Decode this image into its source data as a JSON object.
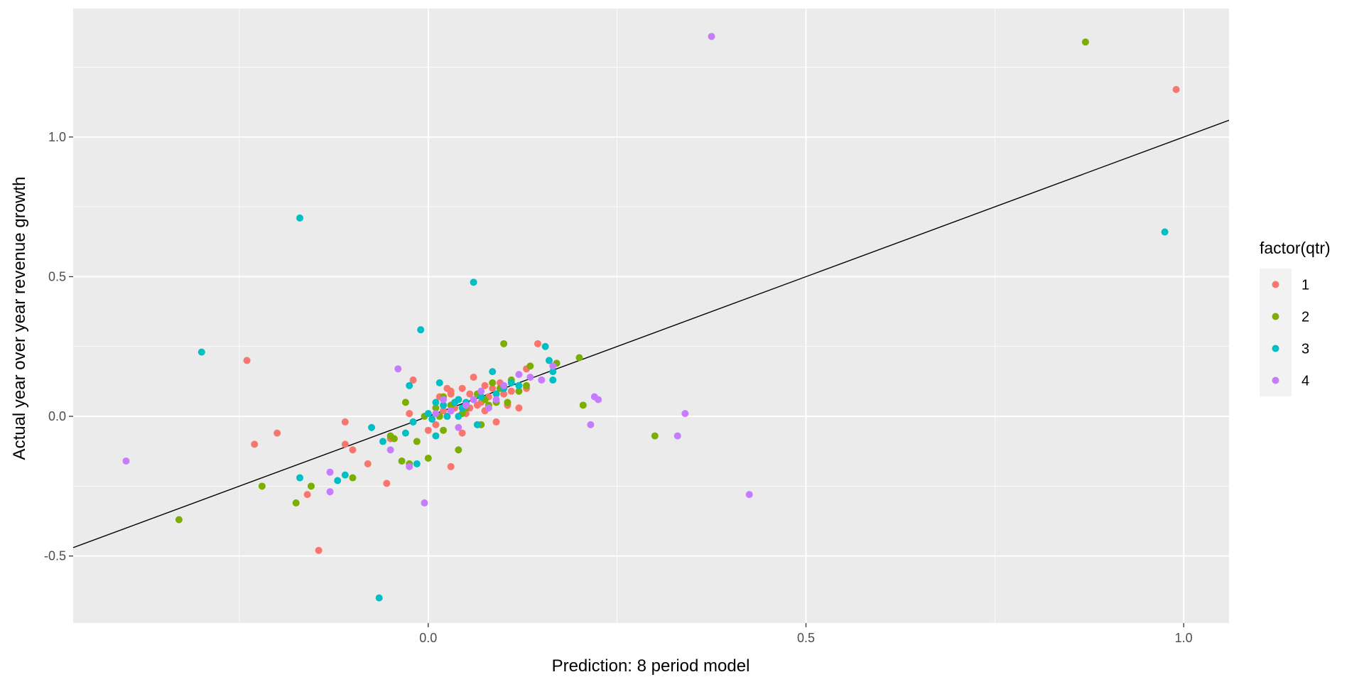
{
  "chart_data": {
    "type": "scatter",
    "title": "",
    "xlabel": "Prediction: 8 period model",
    "ylabel": "Actual year over year revenue growth",
    "xlim": [
      -0.47,
      1.06
    ],
    "ylim": [
      -0.74,
      1.46
    ],
    "x_ticks": [
      0.0,
      0.5,
      1.0
    ],
    "x_tick_labels": [
      "0.0",
      "0.5",
      "1.0"
    ],
    "y_ticks": [
      -0.5,
      0.0,
      0.5,
      1.0
    ],
    "y_tick_labels": [
      "-0.5",
      "0.0",
      "0.5",
      "1.0"
    ],
    "grid": true,
    "legend": {
      "title": "factor(qtr)",
      "position": "right"
    },
    "reference_line": {
      "slope": 1,
      "intercept": 0
    },
    "colors": {
      "panel": "#ebebeb",
      "grid": "#ffffff",
      "tick_text": "#4d4d4d",
      "line": "#000000"
    },
    "series": [
      {
        "name": "1",
        "color": "#F8766D",
        "points": [
          [
            -0.24,
            0.2
          ],
          [
            -0.23,
            -0.1
          ],
          [
            -0.2,
            -0.06
          ],
          [
            -0.16,
            -0.28
          ],
          [
            -0.145,
            -0.48
          ],
          [
            -0.11,
            -0.02
          ],
          [
            -0.11,
            -0.1
          ],
          [
            -0.1,
            -0.12
          ],
          [
            -0.08,
            -0.17
          ],
          [
            -0.055,
            -0.24
          ],
          [
            -0.05,
            -0.08
          ],
          [
            -0.025,
            0.01
          ],
          [
            -0.02,
            0.13
          ],
          [
            0.01,
            -0.03
          ],
          [
            0.02,
            0.02
          ],
          [
            0.025,
            0.1
          ],
          [
            0.03,
            -0.18
          ],
          [
            0.03,
            0.08
          ],
          [
            0.04,
            0.06
          ],
          [
            0.045,
            -0.06
          ],
          [
            0.05,
            0.01
          ],
          [
            0.055,
            0.03
          ],
          [
            0.06,
            0.14
          ],
          [
            0.07,
            0.05
          ],
          [
            0.075,
            0.11
          ],
          [
            0.08,
            0.07
          ],
          [
            0.085,
            0.1
          ],
          [
            0.09,
            -0.02
          ],
          [
            0.095,
            0.12
          ],
          [
            0.1,
            0.08
          ],
          [
            0.105,
            0.04
          ],
          [
            0.11,
            0.09
          ],
          [
            0.12,
            0.03
          ],
          [
            0.13,
            0.1
          ],
          [
            0.13,
            0.17
          ],
          [
            0.145,
            0.26
          ],
          [
            0.03,
            0.09
          ],
          [
            0.045,
            0.1
          ],
          [
            0.065,
            0.04
          ],
          [
            0.0,
            -0.05
          ],
          [
            0.035,
            0.03
          ],
          [
            0.015,
            0.07
          ],
          [
            0.075,
            0.02
          ],
          [
            0.055,
            0.08
          ],
          [
            0.99,
            1.17
          ]
        ]
      },
      {
        "name": "2",
        "color": "#7CAE00",
        "points": [
          [
            -0.33,
            -0.37
          ],
          [
            -0.22,
            -0.25
          ],
          [
            -0.175,
            -0.31
          ],
          [
            -0.155,
            -0.25
          ],
          [
            -0.1,
            -0.22
          ],
          [
            -0.05,
            -0.07
          ],
          [
            -0.045,
            -0.08
          ],
          [
            -0.035,
            -0.16
          ],
          [
            -0.03,
            0.05
          ],
          [
            -0.025,
            -0.17
          ],
          [
            -0.015,
            -0.09
          ],
          [
            -0.005,
            0.0
          ],
          [
            0.0,
            -0.15
          ],
          [
            0.01,
            0.03
          ],
          [
            0.015,
            0.0
          ],
          [
            0.02,
            -0.05
          ],
          [
            0.03,
            0.04
          ],
          [
            0.04,
            -0.12
          ],
          [
            0.05,
            0.03
          ],
          [
            0.06,
            0.06
          ],
          [
            0.065,
            0.08
          ],
          [
            0.07,
            -0.03
          ],
          [
            0.08,
            0.04
          ],
          [
            0.085,
            0.12
          ],
          [
            0.09,
            0.05
          ],
          [
            0.1,
            0.26
          ],
          [
            0.105,
            0.05
          ],
          [
            0.11,
            0.13
          ],
          [
            0.12,
            0.09
          ],
          [
            0.13,
            0.11
          ],
          [
            0.135,
            0.18
          ],
          [
            0.17,
            0.19
          ],
          [
            0.2,
            0.21
          ],
          [
            0.205,
            0.04
          ],
          [
            0.3,
            -0.07
          ],
          [
            0.87,
            1.34
          ],
          [
            0.02,
            0.07
          ],
          [
            0.045,
            0.01
          ],
          [
            0.075,
            0.06
          ],
          [
            0.095,
            0.1
          ]
        ]
      },
      {
        "name": "3",
        "color": "#00BFC4",
        "points": [
          [
            -0.3,
            0.23
          ],
          [
            -0.17,
            0.71
          ],
          [
            -0.17,
            -0.22
          ],
          [
            -0.12,
            -0.23
          ],
          [
            -0.11,
            -0.21
          ],
          [
            -0.075,
            -0.04
          ],
          [
            -0.065,
            -0.65
          ],
          [
            -0.06,
            -0.09
          ],
          [
            -0.03,
            -0.06
          ],
          [
            -0.025,
            0.11
          ],
          [
            -0.02,
            -0.02
          ],
          [
            -0.015,
            -0.17
          ],
          [
            -0.01,
            0.31
          ],
          [
            0.0,
            0.01
          ],
          [
            0.005,
            -0.01
          ],
          [
            0.01,
            -0.07
          ],
          [
            0.015,
            0.12
          ],
          [
            0.02,
            0.04
          ],
          [
            0.03,
            0.02
          ],
          [
            0.035,
            0.05
          ],
          [
            0.04,
            0.06
          ],
          [
            0.045,
            0.03
          ],
          [
            0.06,
            0.48
          ],
          [
            0.065,
            -0.03
          ],
          [
            0.07,
            0.07
          ],
          [
            0.085,
            0.16
          ],
          [
            0.09,
            0.08
          ],
          [
            0.1,
            0.1
          ],
          [
            0.11,
            0.12
          ],
          [
            0.12,
            0.11
          ],
          [
            0.155,
            0.25
          ],
          [
            0.16,
            0.2
          ],
          [
            0.165,
            0.13
          ],
          [
            0.165,
            0.16
          ],
          [
            0.975,
            0.66
          ],
          [
            0.025,
            0.0
          ],
          [
            0.05,
            0.05
          ],
          [
            0.01,
            0.05
          ],
          [
            0.04,
            0.0
          ]
        ]
      },
      {
        "name": "4",
        "color": "#C77CFF",
        "points": [
          [
            -0.4,
            -0.16
          ],
          [
            -0.13,
            -0.2
          ],
          [
            -0.13,
            -0.27
          ],
          [
            -0.05,
            -0.12
          ],
          [
            -0.04,
            0.17
          ],
          [
            -0.025,
            -0.18
          ],
          [
            -0.005,
            -0.31
          ],
          [
            0.01,
            0.01
          ],
          [
            0.02,
            0.06
          ],
          [
            0.04,
            -0.04
          ],
          [
            0.05,
            0.04
          ],
          [
            0.06,
            0.06
          ],
          [
            0.08,
            0.03
          ],
          [
            0.09,
            0.06
          ],
          [
            0.1,
            0.11
          ],
          [
            0.12,
            0.15
          ],
          [
            0.135,
            0.14
          ],
          [
            0.15,
            0.13
          ],
          [
            0.165,
            0.18
          ],
          [
            0.215,
            -0.03
          ],
          [
            0.22,
            0.07
          ],
          [
            0.225,
            0.06
          ],
          [
            0.33,
            -0.07
          ],
          [
            0.34,
            0.01
          ],
          [
            0.375,
            1.36
          ],
          [
            0.425,
            -0.28
          ],
          [
            0.03,
            0.02
          ],
          [
            0.07,
            0.09
          ]
        ]
      }
    ]
  }
}
